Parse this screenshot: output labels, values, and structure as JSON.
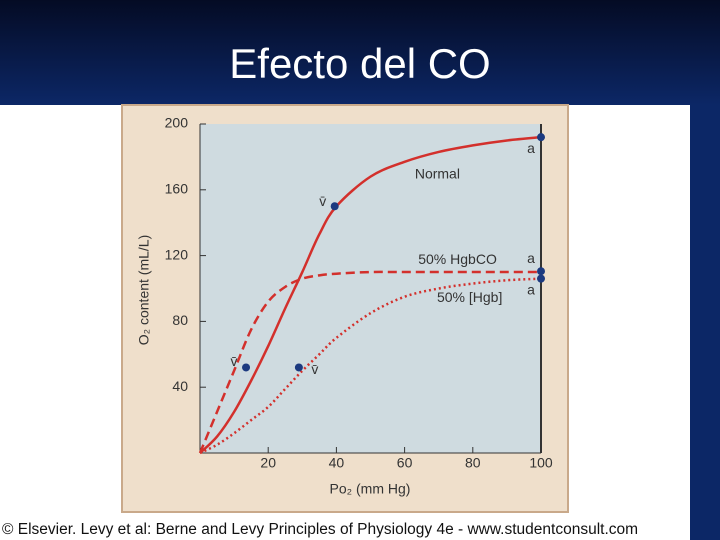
{
  "slide": {
    "title": "Efecto del CO",
    "footer": "© Elsevier. Levy et al: Berne and Levy Principles of Physiology 4e - www.studentconsult.com"
  },
  "chart_data": {
    "type": "line",
    "xlabel": "Po₂ (mm Hg)",
    "ylabel": "O₂ content (mL/L)",
    "x": [
      0,
      5,
      10,
      15,
      20,
      25,
      30,
      35,
      40,
      50,
      60,
      70,
      80,
      90,
      100
    ],
    "series": [
      {
        "name": "Normal",
        "color": "#d3302c",
        "style": "solid",
        "values": [
          0,
          10,
          25,
          44,
          65,
          88,
          110,
          133,
          150,
          168,
          177,
          183,
          187,
          190,
          192
        ]
      },
      {
        "name": "50% HgbCO",
        "color": "#d3302c",
        "style": "dashed",
        "values": [
          0,
          25,
          50,
          75,
          92,
          101,
          106,
          108,
          109,
          110,
          110,
          110,
          110,
          110,
          110
        ]
      },
      {
        "name": "50% [Hgb]",
        "color": "#d3302c",
        "style": "dotted",
        "values": [
          0,
          5,
          12,
          20,
          28,
          39,
          50,
          60,
          70,
          85,
          95,
          100,
          103,
          105,
          106
        ]
      }
    ],
    "annotations": [
      {
        "label": "v̄",
        "x": 39.5,
        "y": 150
      },
      {
        "label": "a",
        "x": 100,
        "y": 192
      },
      {
        "label": "v̄",
        "x": 13.5,
        "y": 52
      },
      {
        "label": "v̄",
        "x": 29,
        "y": 52
      },
      {
        "label": "a",
        "x": 100,
        "y": 110.5
      },
      {
        "label": "a",
        "x": 100,
        "y": 106
      }
    ],
    "point_color": "#1c3a80",
    "xlim": [
      0,
      100
    ],
    "xticks": [
      20,
      40,
      60,
      80,
      100
    ],
    "ylim": [
      0,
      200
    ],
    "yticks": [
      40,
      80,
      120,
      160,
      200
    ]
  }
}
